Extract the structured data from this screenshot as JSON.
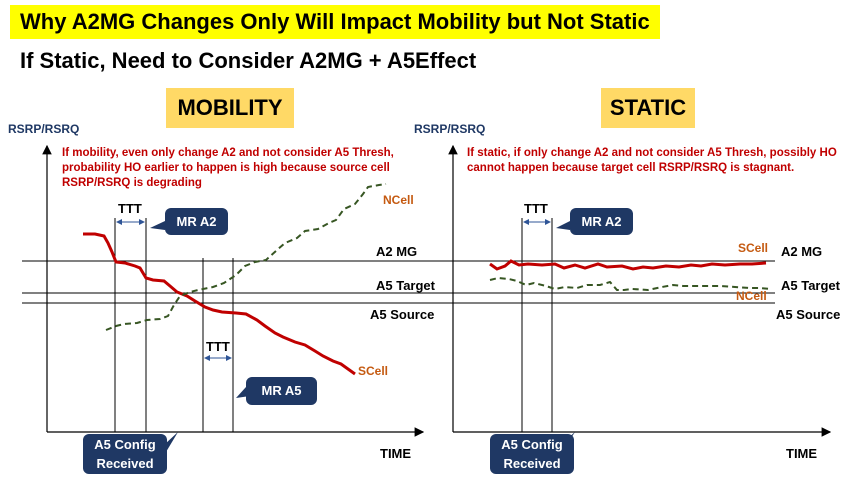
{
  "title": "Why A2MG Changes Only Will Impact Mobility but Not Static",
  "subtitle": "If Static, Need to Consider A2MG + A5Effect",
  "mobility": {
    "tag": "MOBILITY",
    "ylabel": "RSRP/RSRQ",
    "note": "If mobility, even only change A2 and not consider A5 Thresh, probability HO earlier to happen is high because source cell RSRP/RSRQ is degrading",
    "ttt1": "TTT",
    "ttt2": "TTT",
    "mr_a2": "MR A2",
    "mr_a5": "MR A5",
    "ncell": "NCell",
    "scell": "SCell",
    "a2mg": "A2 MG",
    "a5target": "A5 Target",
    "a5source": "A5 Source",
    "config": "A5 Config Received",
    "xlabel": "TIME"
  },
  "static": {
    "tag": "STATIC",
    "ylabel": "RSRP/RSRQ",
    "note": "If static, if only change A2 and not consider A5 Thresh, possibly HO cannot happen because target cell RSRP/RSRQ is stagnant.",
    "ttt1": "TTT",
    "mr_a2": "MR A2",
    "ncell": "NCell",
    "scell": "SCell",
    "a2mg": "A2 MG",
    "a5target": "A5 Target",
    "a5source": "A5 Source",
    "config": "A5 Config Received",
    "xlabel": "TIME"
  },
  "colors": {
    "scell": "#c00000",
    "ncell": "#375623",
    "box": "#1f3864",
    "tag": "#ffd966",
    "highlight": "#ffff00",
    "note": "#c00000"
  }
}
